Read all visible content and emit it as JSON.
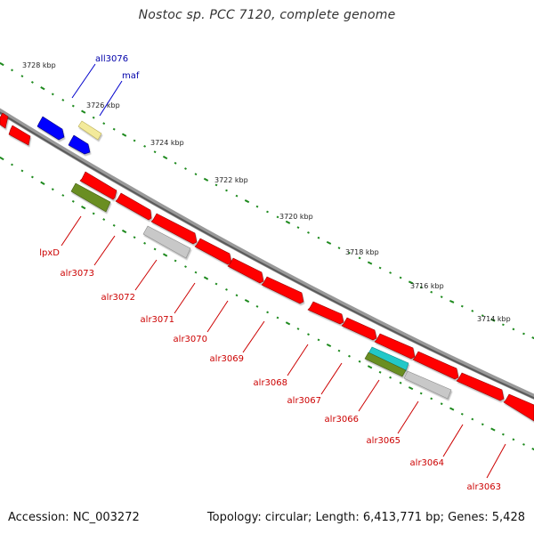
{
  "title": "Nostoc sp. PCC 7120, complete genome",
  "footer": {
    "accession": "Accession: NC_003272",
    "summary": "Topology: circular; Length: 6,413,771 bp; Genes: 5,428"
  },
  "colors": {
    "backbone": "#7a7a7a",
    "ruler_ticks": "#1e8a1e",
    "cds_red": "#ff0000",
    "cds_blue": "#0000ff",
    "cds_olive": "#6b8e23",
    "cds_gray": "#c8c8c8",
    "cds_yellow": "#f3ea9b",
    "cds_cyan": "#20c8c8",
    "label_red": "#cc0000",
    "label_blue": "#0000aa"
  },
  "ruler_labels": [
    "3728 kbp",
    "3726 kbp",
    "3724 kbp",
    "3722 kbp",
    "3720 kbp",
    "3718 kbp",
    "3716 kbp",
    "3714 kbp"
  ],
  "forward_genes": [
    "all3076",
    "maf"
  ],
  "reverse_genes": [
    "lpxD",
    "alr3073",
    "alr3072",
    "alr3071",
    "alr3070",
    "alr3069",
    "alr3068",
    "alr3067",
    "alr3066",
    "alr3065",
    "alr3064",
    "alr3063"
  ]
}
